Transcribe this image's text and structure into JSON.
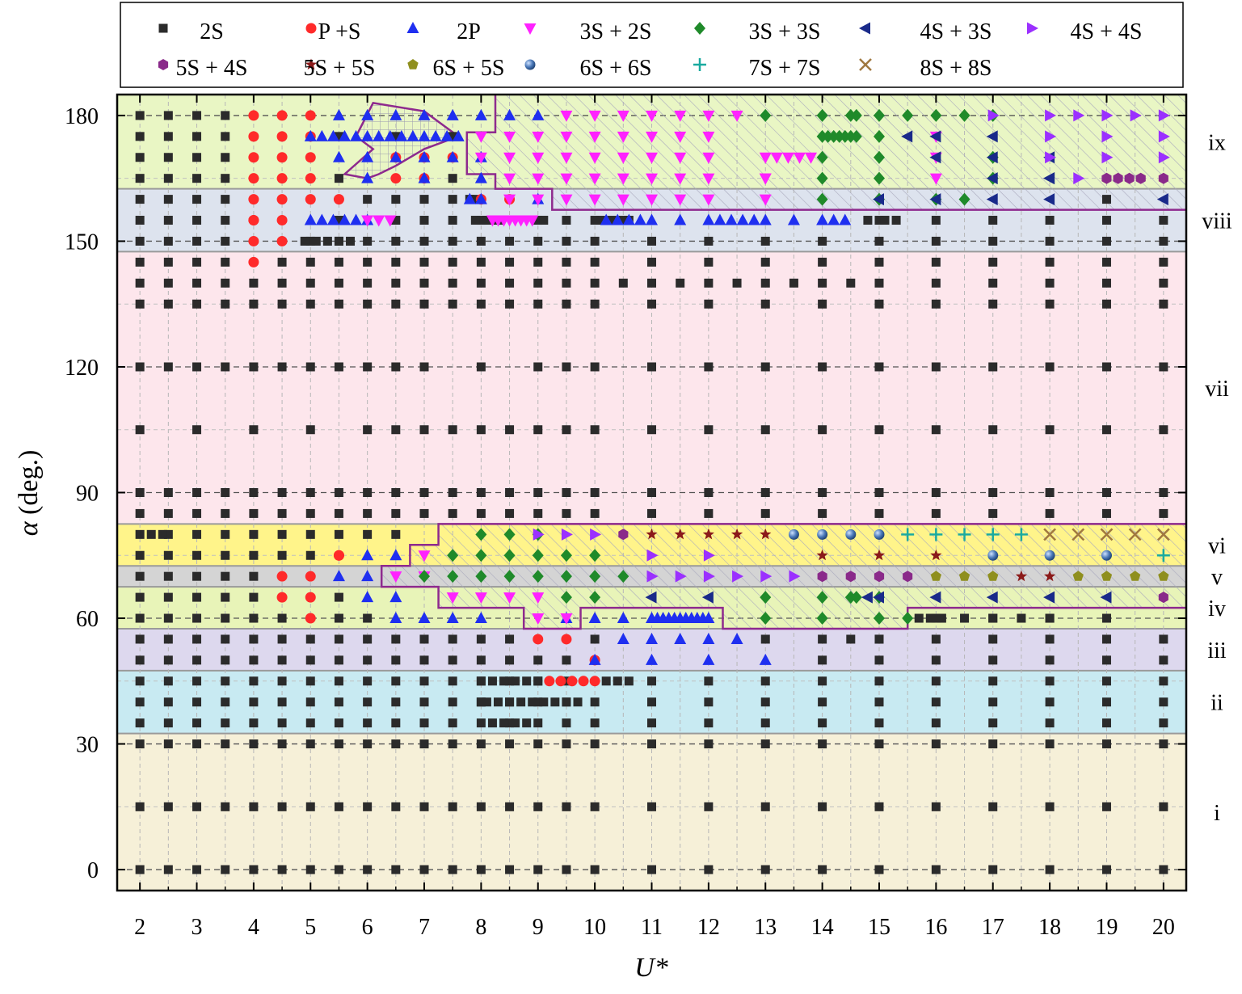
{
  "chart_data": {
    "type": "scatter",
    "title": "",
    "xlabel": "U*",
    "ylabel": "α (deg.)",
    "xlim": [
      1.6,
      20.4
    ],
    "ylim": [
      -5,
      185
    ],
    "xticks": [
      "2",
      "3",
      "4",
      "5",
      "6",
      "7",
      "8",
      "9",
      "10",
      "11",
      "12",
      "13",
      "14",
      "15",
      "16",
      "17",
      "18",
      "19",
      "20"
    ],
    "yticks": [
      "0",
      "30",
      "60",
      "90",
      "120",
      "150",
      "180"
    ],
    "grid": true,
    "legend_position": "top",
    "colors": {
      "2S": "#2b2b2b",
      "P+S": "#ff2a2a",
      "2P": "#1f2ff0",
      "3S+2S": "#ff22ff",
      "3S+3S": "#1f8a2a",
      "4S+3S": "#1a2a8a",
      "4S+4S": "#9b30ff",
      "5S+4S": "#8a2a8a",
      "5S+5S": "#8b1a1a",
      "6S+5S": "#8f8f1e",
      "6S+6S": "#4a78b8",
      "7S+7S": "#1aaaa0",
      "8S+8S": "#a07840"
    },
    "bands": [
      {
        "label": "i",
        "ymin": -5,
        "ymax": 32.5,
        "color": "#f6f0d8"
      },
      {
        "label": "ii",
        "ymin": 32.5,
        "ymax": 47.5,
        "color": "#c8eaf2"
      },
      {
        "label": "iii",
        "ymin": 47.5,
        "ymax": 57.5,
        "color": "#ddd8ee"
      },
      {
        "label": "iv",
        "ymin": 57.5,
        "ymax": 67.5,
        "color": "#e8f4b8"
      },
      {
        "label": "v",
        "ymin": 67.5,
        "ymax": 72.5,
        "color": "#d4d4d4"
      },
      {
        "label": "vi",
        "ymin": 72.5,
        "ymax": 82.5,
        "color": "#fff48a"
      },
      {
        "label": "vii",
        "ymin": 82.5,
        "ymax": 147.5,
        "color": "#fde6ec"
      },
      {
        "label": "viii",
        "ymin": 147.5,
        "ymax": 162.5,
        "color": "#dde3ee"
      },
      {
        "label": "ix",
        "ymin": 162.5,
        "ymax": 185,
        "color": "#e9f6c4"
      }
    ],
    "series": [
      {
        "name": "2S",
        "marker": "square",
        "x": [],
        "y": []
      },
      {
        "name": "P +S",
        "marker": "circle",
        "x": [
          4,
          4,
          4,
          4,
          4,
          4,
          4,
          4,
          4,
          4.5,
          4.5,
          4.5,
          4.5,
          4.5,
          4.5,
          4.5,
          5,
          5,
          5,
          5,
          5,
          5.5,
          5.5,
          6.5,
          6.5,
          7,
          7,
          7.5,
          8,
          8.5,
          4.5,
          5,
          5.5,
          4.5,
          5,
          5,
          9,
          9.5,
          10,
          9.2,
          9.4,
          9.6,
          9.8,
          10
        ],
        "y": [
          180,
          175,
          170,
          165,
          160,
          155,
          150,
          145,
          155,
          180,
          175,
          170,
          165,
          160,
          155,
          150,
          180,
          175,
          170,
          165,
          160,
          160,
          75,
          170,
          165,
          170,
          165,
          170,
          160,
          160,
          70,
          70,
          75,
          65,
          65,
          60,
          55,
          55,
          50,
          45,
          45,
          45,
          45,
          45
        ]
      },
      {
        "name": "2P",
        "marker": "triangle-up",
        "x": [
          5.5,
          6,
          6.5,
          7,
          7.5,
          8,
          8.5,
          9,
          5,
          5.2,
          5.4,
          5.6,
          5.8,
          6,
          6.2,
          6.4,
          6.6,
          6.8,
          7,
          7.2,
          7.4,
          7.6,
          5.5,
          6,
          6.5,
          7,
          7.5,
          8,
          6,
          7,
          8,
          7.8,
          8,
          9,
          5,
          5.2,
          5.4,
          5.6,
          5.8,
          6,
          10.2,
          10.4,
          10.6,
          10.8,
          11,
          11.5,
          12,
          12.2,
          12.4,
          12.6,
          12.8,
          13,
          13.5,
          14,
          14.2,
          14.4,
          6,
          6.5,
          5.5,
          6,
          6,
          6.5,
          6.5,
          7,
          7.5,
          8,
          9.5,
          10,
          10.5,
          11,
          11.1,
          11.2,
          11.3,
          11.4,
          11.5,
          11.6,
          11.7,
          11.8,
          11.9,
          12,
          10.5,
          11,
          11.5,
          12,
          12.5,
          10,
          11,
          12,
          13
        ],
        "y": [
          180,
          180,
          180,
          180,
          180,
          180,
          180,
          180,
          175,
          175,
          175,
          175,
          175,
          175,
          175,
          175,
          175,
          175,
          175,
          175,
          175,
          175,
          170,
          170,
          170,
          170,
          170,
          170,
          165,
          165,
          165,
          160,
          160,
          160,
          155,
          155,
          155,
          155,
          155,
          155,
          155,
          155,
          155,
          155,
          155,
          155,
          155,
          155,
          155,
          155,
          155,
          155,
          155,
          155,
          155,
          155,
          75,
          75,
          70,
          70,
          65,
          65,
          60,
          60,
          60,
          60,
          60,
          60,
          60,
          60,
          60,
          60,
          60,
          60,
          60,
          60,
          60,
          60,
          60,
          60,
          55,
          55,
          55,
          55,
          55,
          50,
          50,
          50,
          50
        ]
      },
      {
        "name": "3S + 2S",
        "marker": "triangle-down",
        "x": [
          9.5,
          10,
          10.5,
          11,
          11.5,
          12,
          12.5,
          8,
          8.5,
          9,
          9.5,
          10,
          10.5,
          11,
          11.5,
          12,
          13,
          13.2,
          13.4,
          13.6,
          13.8,
          8,
          8.5,
          9,
          9.5,
          10,
          10.5,
          11,
          11.5,
          12,
          13,
          8.5,
          9,
          9.5,
          10,
          10.5,
          11,
          11.5,
          12,
          13,
          8.5,
          9,
          9.5,
          10,
          10.5,
          11,
          11.5,
          12,
          13,
          6,
          6.2,
          6.4,
          8.2,
          8.3,
          8.4,
          8.5,
          8.6,
          8.7,
          8.8,
          8.9,
          7,
          6.5,
          7,
          7.5,
          8,
          8.5,
          9,
          9,
          9.5,
          16,
          16,
          16
        ],
        "y": [
          180,
          180,
          180,
          180,
          180,
          180,
          180,
          175,
          175,
          175,
          175,
          175,
          175,
          175,
          175,
          175,
          170,
          170,
          170,
          170,
          170,
          170,
          170,
          170,
          170,
          170,
          170,
          170,
          170,
          170,
          165,
          165,
          165,
          165,
          165,
          165,
          165,
          165,
          165,
          165,
          160,
          160,
          160,
          160,
          160,
          160,
          160,
          160,
          160,
          155,
          155,
          155,
          155,
          155,
          155,
          155,
          155,
          155,
          155,
          155,
          75,
          70,
          70,
          65,
          65,
          65,
          65,
          60,
          60,
          175,
          170,
          165
        ]
      },
      {
        "name": "3S + 3S",
        "marker": "diamond",
        "x": [
          13,
          14,
          14.5,
          14.6,
          15,
          15.5,
          16,
          16.5,
          17,
          14,
          14.1,
          14.2,
          14.3,
          14.4,
          14.5,
          14.6,
          15,
          14,
          15,
          17,
          14,
          15,
          17,
          14,
          15,
          16,
          16.5,
          8,
          8.5,
          9,
          7.5,
          8,
          8.5,
          9,
          9.5,
          10,
          7,
          7.5,
          8,
          8.5,
          9,
          9.5,
          10,
          10.5,
          9.5,
          10,
          13,
          14,
          14.5,
          14.6,
          15,
          13,
          14,
          15,
          15.5
        ],
        "y": [
          180,
          180,
          180,
          180,
          180,
          180,
          180,
          180,
          180,
          175,
          175,
          175,
          175,
          175,
          175,
          175,
          175,
          170,
          170,
          170,
          165,
          165,
          165,
          160,
          160,
          160,
          160,
          80,
          80,
          80,
          75,
          75,
          75,
          75,
          75,
          75,
          70,
          70,
          70,
          70,
          70,
          70,
          70,
          70,
          65,
          65,
          65,
          65,
          65,
          65,
          65,
          60,
          60,
          60,
          60
        ]
      },
      {
        "name": "4S + 3S",
        "marker": "triangle-left",
        "x": [
          15.5,
          16,
          17,
          16,
          17,
          18,
          18,
          17,
          18,
          15,
          16,
          17,
          18,
          20,
          11,
          12,
          14.8,
          15,
          16,
          17,
          18,
          19
        ],
        "y": [
          175,
          175,
          175,
          170,
          170,
          170,
          165,
          165,
          165,
          160,
          160,
          160,
          160,
          160,
          65,
          65,
          65,
          65,
          65,
          65,
          65,
          65
        ]
      },
      {
        "name": "4S + 4S",
        "marker": "triangle-right",
        "x": [
          17,
          18,
          18.5,
          19,
          19.5,
          20,
          18,
          19,
          20,
          18,
          19,
          20,
          18.5,
          9,
          9.5,
          10,
          11,
          12,
          11,
          11.5,
          12,
          12.5,
          13,
          13.5
        ],
        "y": [
          180,
          180,
          180,
          180,
          180,
          180,
          175,
          175,
          175,
          170,
          170,
          170,
          165,
          80,
          80,
          80,
          75,
          75,
          70,
          70,
          70,
          70,
          70,
          70
        ]
      },
      {
        "name": "5S + 4S",
        "marker": "hexagon",
        "x": [
          19,
          19.2,
          19.4,
          19.6,
          20,
          10.5,
          14,
          14.5,
          15,
          15.5,
          20
        ],
        "y": [
          165,
          165,
          165,
          165,
          165,
          80,
          70,
          70,
          70,
          70,
          65
        ]
      },
      {
        "name": "5S + 5S",
        "marker": "star",
        "x": [
          11,
          11.5,
          12,
          12.5,
          13,
          14,
          15,
          16,
          17.5,
          18
        ],
        "y": [
          80,
          80,
          80,
          80,
          80,
          75,
          75,
          75,
          70,
          70
        ]
      },
      {
        "name": "6S + 5S",
        "marker": "pentagon",
        "x": [
          16,
          16.5,
          17,
          18.5,
          19,
          19.5,
          20
        ],
        "y": [
          70,
          70,
          70,
          70,
          70,
          70,
          70
        ]
      },
      {
        "name": "6S + 6S",
        "marker": "sphere",
        "x": [
          13.5,
          14,
          14.5,
          15,
          17,
          18,
          19
        ],
        "y": [
          80,
          80,
          80,
          80,
          75,
          75,
          75
        ]
      },
      {
        "name": "7S + 7S",
        "marker": "plus",
        "x": [
          15.5,
          16,
          16.5,
          17,
          17.5,
          20
        ],
        "y": [
          80,
          80,
          80,
          80,
          80,
          75
        ]
      },
      {
        "name": "8S + 8S",
        "marker": "cross",
        "x": [
          18,
          18.5,
          19,
          19.5,
          20
        ],
        "y": [
          80,
          80,
          80,
          80,
          80
        ]
      }
    ],
    "twoS_grid": {
      "x_full": [
        2,
        2.5,
        3,
        3.5,
        4,
        4.5,
        5,
        5.5,
        6,
        6.5,
        7,
        7.5,
        8,
        8.5,
        9,
        9.5,
        10,
        11,
        12,
        13,
        14,
        15,
        16,
        17,
        18,
        19,
        20
      ],
      "y_full": [
        0,
        15,
        30,
        35,
        40,
        45,
        50,
        55,
        60,
        65,
        70,
        75,
        80,
        85,
        90,
        105,
        120,
        135,
        140,
        145,
        150,
        155,
        160,
        165,
        170,
        175,
        180
      ],
      "exclude_note": ""
    },
    "regions": [
      {
        "name": "top",
        "points": [
          [
            8.25,
            186
          ],
          [
            20.5,
            186
          ],
          [
            20.5,
            157.5
          ],
          [
            9.25,
            157.5
          ],
          [
            9.25,
            162.5
          ],
          [
            8.25,
            162.5
          ],
          [
            8.25,
            166
          ],
          [
            7.75,
            166
          ],
          [
            7.75,
            176
          ],
          [
            8.25,
            176
          ]
        ]
      },
      {
        "name": "upper-notch",
        "points": [
          [
            6.1,
            183
          ],
          [
            7,
            181
          ],
          [
            7.6,
            175
          ],
          [
            7,
            172
          ],
          [
            6.5,
            168
          ],
          [
            6.2,
            166
          ],
          [
            6,
            165
          ],
          [
            5.6,
            166
          ],
          [
            6.1,
            172
          ],
          [
            5.8,
            175
          ],
          [
            6.1,
            183
          ]
        ]
      },
      {
        "name": "middle",
        "points": [
          [
            7.75,
            82.5
          ],
          [
            20.5,
            82.5
          ],
          [
            20.5,
            62.5
          ],
          [
            15.5,
            62.5
          ],
          [
            15.5,
            57.5
          ],
          [
            12.25,
            57.5
          ],
          [
            12.25,
            62.5
          ],
          [
            9.75,
            62.5
          ],
          [
            9.75,
            57.5
          ],
          [
            8.75,
            57.5
          ],
          [
            8.75,
            62.5
          ],
          [
            7.25,
            62.5
          ],
          [
            7.25,
            67.5
          ],
          [
            6.25,
            67.5
          ],
          [
            6.25,
            72.5
          ],
          [
            6.75,
            72.5
          ],
          [
            6.75,
            77.5
          ],
          [
            7.25,
            77.5
          ],
          [
            7.25,
            82.5
          ]
        ]
      }
    ]
  }
}
